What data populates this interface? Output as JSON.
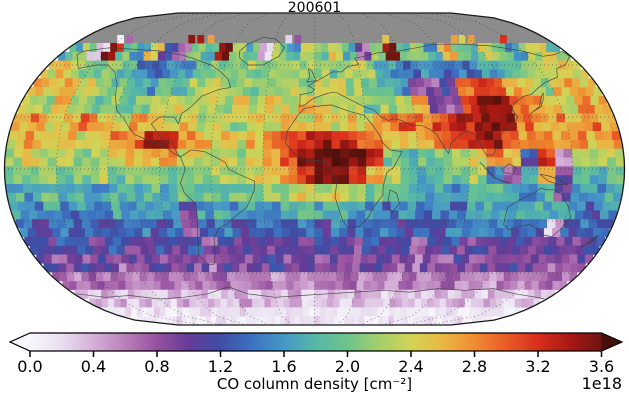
{
  "title": "200601",
  "colorbar": {
    "label": "CO column density [cm⁻²]",
    "offset_text": "1e18",
    "ticks": [
      "0.0",
      "0.4",
      "0.8",
      "1.2",
      "1.6",
      "2.0",
      "2.4",
      "2.8",
      "3.2",
      "3.6"
    ],
    "tick_values": [
      0.0,
      0.4,
      0.8,
      1.2,
      1.6,
      2.0,
      2.4,
      2.8,
      3.2,
      3.6
    ],
    "vmin": 0.0,
    "vmax": 3.6,
    "extend": "both",
    "colormap_stops": [
      [
        0.0,
        "#f8f7fc"
      ],
      [
        0.2,
        "#e9def0"
      ],
      [
        0.4,
        "#d5aed8"
      ],
      [
        0.6,
        "#b97fba"
      ],
      [
        0.8,
        "#96519f"
      ],
      [
        1.0,
        "#653c97"
      ],
      [
        1.2,
        "#3f4da5"
      ],
      [
        1.4,
        "#3c73c1"
      ],
      [
        1.6,
        "#4697c6"
      ],
      [
        1.8,
        "#56b8a6"
      ],
      [
        2.0,
        "#6ec48b"
      ],
      [
        2.2,
        "#a3cf6c"
      ],
      [
        2.4,
        "#d3d356"
      ],
      [
        2.6,
        "#e9b745"
      ],
      [
        2.8,
        "#ef8c32"
      ],
      [
        3.0,
        "#e85c26"
      ],
      [
        3.2,
        "#d92e1c"
      ],
      [
        3.4,
        "#a81913"
      ],
      [
        3.6,
        "#6f1410"
      ],
      [
        4.0,
        "#451009"
      ]
    ]
  },
  "map": {
    "no_data_color": "#8c8c8c",
    "coastline_color": "#3f3f3f",
    "outline_color": "#1a1a1a",
    "background": "#ffffff"
  },
  "chart_data": {
    "type": "heatmap",
    "title": "200601",
    "colorbar_label": "CO column density [cm⁻²]",
    "scale_factor": "1e18",
    "projection": "global pseudocylindrical (pole-line ellipse), 0° centered",
    "lon_min": -180,
    "lon_max": 180,
    "lat_min": -90,
    "lat_max": 90,
    "grid_deg": 10,
    "lat_centers": [
      85,
      75,
      65,
      55,
      45,
      35,
      25,
      15,
      5,
      -5,
      -15,
      -25,
      -35,
      -45,
      -55,
      -65,
      -75,
      -85
    ],
    "note": "null = no retrieval (gray polar-night cap north of ~72N)",
    "values": [
      [
        null,
        null,
        null,
        null,
        null,
        null,
        null,
        null,
        null,
        null,
        null,
        null,
        null,
        null,
        null,
        null,
        null,
        null,
        null,
        null,
        null,
        null,
        null,
        null,
        null,
        null,
        null,
        null,
        null,
        null,
        null,
        null,
        null,
        null,
        null,
        null
      ],
      [
        null,
        null,
        null,
        null,
        null,
        null,
        null,
        null,
        null,
        null,
        null,
        null,
        null,
        null,
        null,
        null,
        null,
        null,
        null,
        null,
        null,
        null,
        null,
        null,
        null,
        null,
        null,
        null,
        null,
        null,
        null,
        null,
        null,
        null,
        null,
        null
      ],
      [
        1.8,
        2.2,
        0.2,
        3.4,
        2.0,
        1.6,
        2.4,
        1.2,
        0.7,
        2.0,
        1.8,
        3.5,
        2.2,
        1.9,
        0.3,
        2.1,
        1.7,
        2.3,
        2.0,
        2.4,
        1.8,
        0.8,
        2.2,
        3.4,
        1.9,
        2.1,
        1.6,
        2.6,
        2.2,
        1.8,
        2.4,
        2.0,
        1.5,
        2.2,
        2.6,
        1.9
      ],
      [
        2.4,
        2.6,
        2.2,
        2.0,
        2.3,
        1.8,
        1.4,
        1.3,
        1.5,
        1.6,
        1.8,
        2.0,
        2.0,
        2.2,
        1.9,
        2.1,
        2.3,
        2.2,
        2.2,
        2.0,
        2.4,
        2.2,
        1.8,
        1.6,
        1.4,
        1.6,
        1.3,
        1.5,
        1.4,
        1.6,
        1.8,
        2.0,
        2.2,
        2.3,
        2.5,
        2.4
      ],
      [
        2.6,
        2.4,
        2.8,
        2.5,
        2.2,
        2.0,
        1.8,
        1.6,
        2.0,
        1.8,
        2.2,
        2.4,
        2.1,
        2.2,
        2.0,
        2.2,
        2.4,
        2.1,
        2.3,
        2.6,
        2.2,
        2.0,
        1.8,
        1.6,
        0.9,
        0.8,
        1.1,
        2.8,
        3.3,
        3.1,
        2.6,
        2.4,
        2.2,
        2.6,
        2.8,
        2.5
      ],
      [
        2.4,
        2.2,
        2.6,
        2.3,
        2.0,
        2.2,
        1.8,
        2.0,
        2.2,
        2.4,
        2.2,
        2.3,
        2.2,
        2.4,
        2.2,
        2.5,
        2.3,
        2.6,
        2.4,
        2.2,
        2.3,
        2.0,
        2.2,
        2.4,
        2.6,
        1.0,
        0.8,
        3.2,
        3.6,
        3.6,
        3.0,
        2.8,
        2.6,
        2.4,
        2.8,
        2.6
      ],
      [
        2.6,
        2.8,
        2.4,
        2.6,
        2.9,
        2.6,
        2.4,
        2.7,
        2.5,
        2.4,
        2.6,
        2.3,
        2.4,
        2.2,
        2.4,
        2.3,
        2.5,
        2.4,
        2.6,
        2.4,
        2.5,
        2.6,
        2.8,
        3.0,
        2.9,
        3.1,
        3.4,
        3.3,
        3.6,
        3.4,
        2.9,
        2.7,
        2.8,
        2.6,
        2.9,
        2.7
      ],
      [
        2.5,
        2.7,
        2.4,
        2.6,
        2.4,
        2.6,
        2.8,
        2.9,
        3.5,
        3.3,
        2.8,
        2.6,
        2.5,
        2.4,
        2.6,
        2.8,
        3.0,
        3.2,
        3.4,
        3.3,
        3.1,
        2.9,
        2.6,
        2.5,
        2.6,
        2.9,
        3.0,
        3.3,
        3.5,
        3.1,
        2.8,
        3.0,
        2.7,
        2.9,
        2.6,
        2.8
      ],
      [
        2.2,
        2.4,
        2.1,
        2.3,
        2.0,
        2.2,
        2.4,
        2.5,
        2.6,
        2.7,
        2.5,
        2.4,
        2.4,
        2.2,
        2.4,
        2.6,
        3.0,
        3.5,
        3.7,
        3.7,
        3.6,
        3.2,
        2.0,
        1.9,
        2.0,
        2.1,
        2.2,
        2.4,
        2.8,
        2.6,
        1.2,
        3.2,
        0.6,
        2.4,
        2.2,
        2.3
      ],
      [
        2.0,
        1.9,
        2.1,
        1.8,
        2.0,
        2.2,
        1.9,
        2.1,
        2.2,
        2.0,
        2.2,
        2.1,
        2.3,
        2.2,
        2.4,
        2.5,
        2.8,
        3.3,
        3.6,
        3.5,
        3.2,
        2.6,
        2.2,
        1.9,
        1.8,
        1.9,
        2.0,
        2.2,
        1.4,
        0.8,
        1.8,
        2.6,
        0.9,
        2.0,
        1.8,
        2.1
      ],
      [
        1.8,
        1.6,
        1.9,
        1.7,
        1.8,
        1.6,
        1.8,
        1.7,
        1.9,
        1.8,
        2.0,
        1.9,
        1.8,
        2.0,
        1.9,
        2.1,
        2.2,
        2.4,
        2.3,
        2.5,
        2.2,
        2.0,
        1.8,
        1.7,
        1.6,
        1.8,
        1.5,
        1.7,
        1.9,
        1.8,
        1.6,
        1.8,
        0.9,
        1.7,
        1.6,
        1.8
      ],
      [
        1.6,
        1.5,
        1.7,
        1.4,
        1.6,
        1.5,
        1.7,
        1.6,
        1.5,
        1.7,
        0.9,
        1.6,
        1.8,
        1.6,
        1.7,
        1.5,
        1.8,
        1.9,
        1.7,
        1.8,
        1.6,
        1.5,
        1.4,
        1.6,
        1.3,
        1.5,
        1.4,
        1.6,
        1.8,
        1.7,
        1.9,
        1.8,
        1.6,
        1.5,
        1.3,
        1.6
      ],
      [
        1.4,
        1.2,
        1.5,
        1.3,
        1.4,
        1.2,
        1.3,
        1.5,
        1.2,
        1.4,
        0.8,
        1.3,
        1.5,
        1.2,
        1.4,
        1.3,
        1.1,
        1.4,
        1.2,
        1.5,
        1.3,
        1.2,
        1.4,
        1.1,
        1.3,
        1.2,
        1.4,
        1.3,
        1.5,
        1.4,
        1.2,
        1.3,
        0.4,
        1.2,
        1.4,
        1.3
      ],
      [
        1.2,
        1.0,
        1.3,
        1.1,
        0.9,
        1.2,
        1.0,
        1.1,
        1.3,
        1.0,
        1.2,
        0.8,
        1.1,
        1.0,
        1.2,
        0.9,
        1.1,
        1.0,
        1.2,
        1.1,
        0.9,
        1.2,
        1.0,
        1.1,
        0.8,
        1.0,
        1.2,
        0.9,
        1.1,
        1.0,
        1.2,
        0.9,
        1.1,
        1.0,
        0.8,
        1.1
      ],
      [
        1.0,
        0.8,
        1.1,
        0.9,
        1.0,
        0.7,
        0.9,
        1.1,
        0.8,
        1.0,
        0.9,
        0.7,
        1.0,
        0.8,
        0.9,
        1.1,
        0.8,
        0.9,
        0.7,
        1.0,
        0.8,
        0.9,
        1.1,
        0.8,
        0.7,
        0.9,
        0.8,
        1.0,
        0.7,
        0.9,
        0.8,
        1.0,
        0.9,
        0.7,
        0.8,
        1.0
      ],
      [
        0.7,
        0.5,
        0.8,
        0.6,
        0.7,
        0.5,
        0.6,
        0.8,
        0.5,
        0.7,
        0.6,
        0.8,
        0.5,
        0.6,
        0.7,
        0.4,
        0.6,
        0.5,
        0.7,
        0.6,
        0.8,
        0.5,
        0.6,
        0.4,
        0.7,
        0.5,
        0.6,
        0.8,
        0.5,
        0.6,
        0.4,
        0.7,
        0.5,
        0.6,
        0.8,
        0.6
      ],
      [
        0.4,
        0.3,
        0.5,
        0.2,
        0.4,
        0.3,
        0.2,
        0.5,
        0.3,
        0.4,
        0.2,
        0.3,
        0.5,
        0.2,
        0.4,
        0.3,
        0.5,
        0.2,
        0.3,
        0.4,
        0.2,
        0.5,
        0.3,
        0.2,
        0.4,
        0.3,
        0.2,
        0.4,
        0.3,
        0.5,
        0.2,
        0.4,
        0.3,
        0.2,
        0.4,
        0.3
      ],
      [
        0.1,
        0.2,
        0.1,
        0.1,
        0.2,
        0.1,
        0.1,
        0.1,
        0.2,
        0.1,
        0.1,
        0.2,
        0.1,
        0.1,
        0.1,
        0.2,
        0.1,
        0.1,
        0.2,
        0.1,
        0.1,
        0.1,
        0.2,
        0.1,
        0.1,
        0.2,
        0.1,
        0.1,
        0.1,
        0.2,
        0.1,
        0.1,
        0.2,
        0.1,
        0.1,
        0.1
      ]
    ],
    "polar_edge_cells": [
      {
        "lon": -150,
        "v": 0.05
      },
      {
        "lon": -143,
        "v": 0.7
      },
      {
        "lon": -95,
        "v": 3.5
      },
      {
        "lon": -88,
        "v": 3.4
      },
      {
        "lon": -80,
        "v": 2.7
      },
      {
        "lon": -20,
        "v": 0.25
      },
      {
        "lon": -13,
        "v": 0.8
      },
      {
        "lon": 55,
        "v": 2.5
      },
      {
        "lon": 108,
        "v": 2.7
      },
      {
        "lon": 114,
        "v": 2.4
      },
      {
        "lon": 121,
        "v": 2.7
      },
      {
        "lon": 146,
        "v": 3.2
      }
    ]
  }
}
